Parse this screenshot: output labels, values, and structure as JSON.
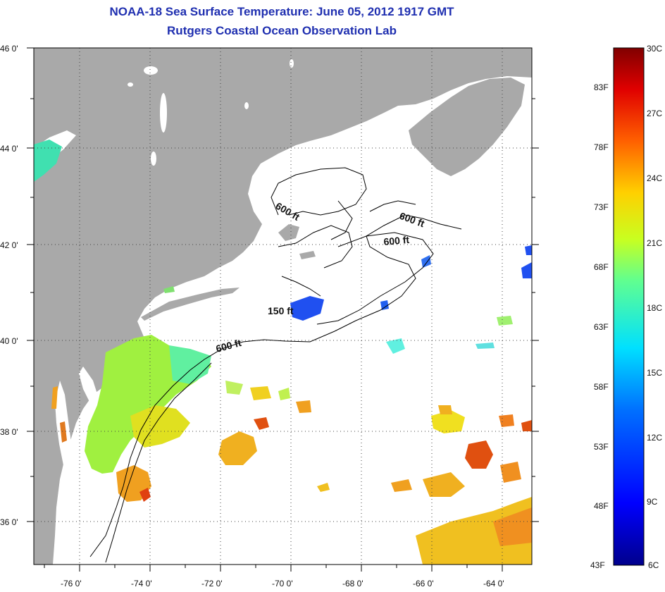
{
  "header": {
    "title_line1": "NOAA-18 Sea Surface Temperature:  June 05, 2012 1917 GMT",
    "title_line2": "Rutgers Coastal Ocean Observation Lab"
  },
  "map": {
    "lon_range": [
      -77,
      -63
    ],
    "lat_range": [
      35,
      46
    ],
    "lon_ticks": [
      "-76 0'",
      "-74 0'",
      "-72 0'",
      "-70 0'",
      "-68 0'",
      "-66 0'",
      "-64 0'"
    ],
    "lat_ticks": [
      "46 0'",
      "44 0'",
      "42 0'",
      "40 0'",
      "38 0'",
      "36 0'"
    ],
    "isobath_labels": [
      "600 ft",
      "600 ft",
      "600 ft",
      "150 ft",
      "600 ft"
    ],
    "land_color": "#a9a9a9",
    "ocean_color": "#ffffff"
  },
  "colorbar": {
    "celsius_labels": [
      "30C",
      "27C",
      "24C",
      "21C",
      "18C",
      "15C",
      "12C",
      "9C",
      "6C"
    ],
    "fahrenheit_labels": [
      "83F",
      "78F",
      "73F",
      "68F",
      "63F",
      "58F",
      "53F",
      "48F",
      "43F"
    ]
  }
}
